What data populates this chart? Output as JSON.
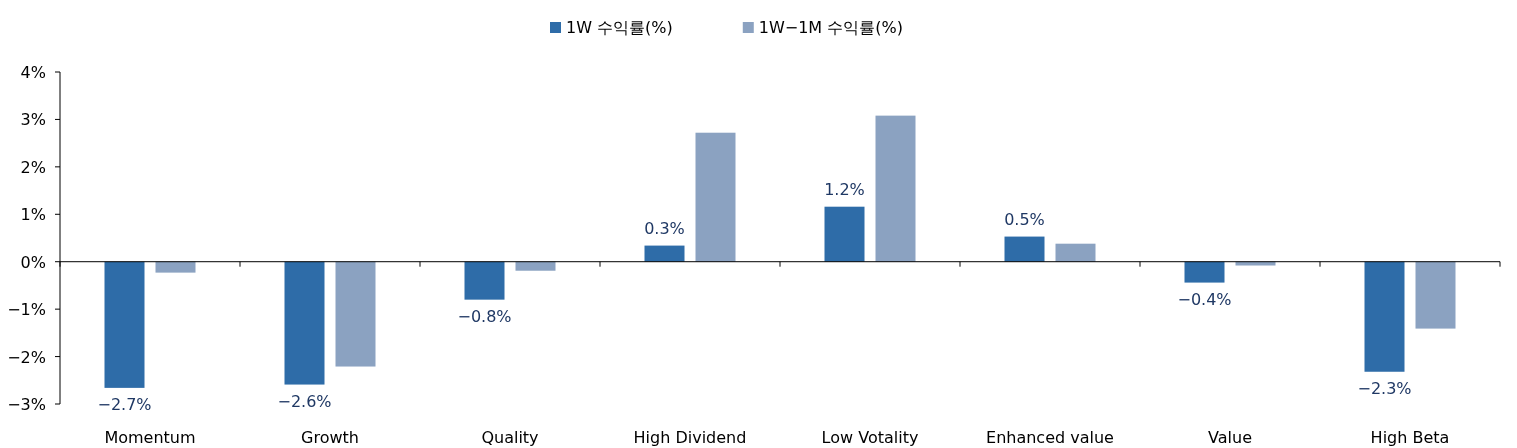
{
  "chart_data": {
    "type": "bar",
    "categories": [
      "Momentum",
      "Growth",
      "Quality",
      "High Dividend",
      "Low Votality",
      "Enhanced value",
      "Value",
      "High Beta"
    ],
    "series": [
      {
        "name": "1W 수익률(%)",
        "color": "#2e6ca8",
        "values": [
          -2.66,
          -2.59,
          -0.8,
          0.34,
          1.16,
          0.53,
          -0.44,
          -2.32
        ],
        "value_labels": [
          "−2.7%",
          "−2.6%",
          "−0.8%",
          "0.3%",
          "1.2%",
          "0.5%",
          "−0.4%",
          "−2.3%"
        ]
      },
      {
        "name": "1W−1M 수익률(%)",
        "color": "#8ba2c1",
        "values": [
          -0.23,
          -2.21,
          -0.19,
          2.72,
          3.08,
          0.38,
          -0.08,
          -1.41
        ]
      }
    ],
    "ylim": [
      -3,
      4
    ],
    "yticks": [
      {
        "value": -3,
        "label": "−3%"
      },
      {
        "value": -2,
        "label": "−2%"
      },
      {
        "value": -1,
        "label": "−1%"
      },
      {
        "value": 0,
        "label": "0%"
      },
      {
        "value": 1,
        "label": "1%"
      },
      {
        "value": 2,
        "label": "2%"
      },
      {
        "value": 3,
        "label": "3%"
      },
      {
        "value": 4,
        "label": "4%"
      }
    ],
    "legend": "top"
  }
}
